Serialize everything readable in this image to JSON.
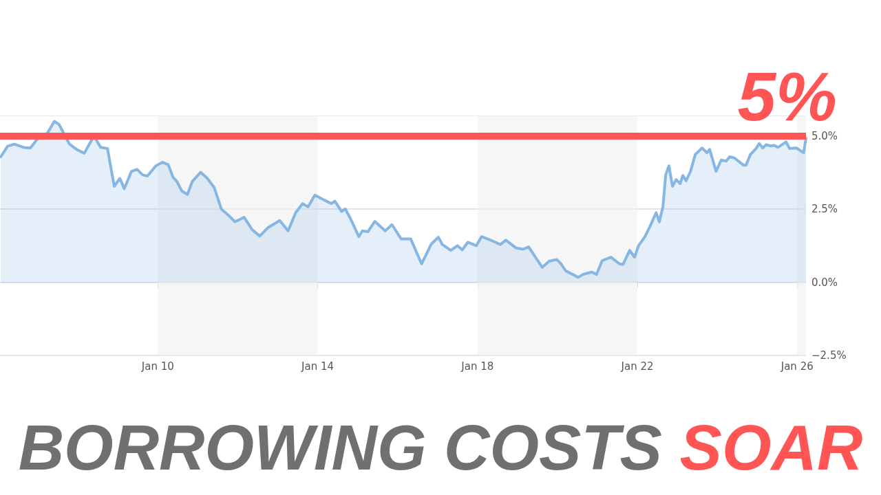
{
  "chart_data": {
    "type": "area",
    "title": "BORROWING COSTS SOAR",
    "x": [
      "--01-06T01:41",
      "--01-06T05:46",
      "--01-06T09:50",
      "--01-06T15:22",
      "--01-06T19:26",
      "--01-07T00:29",
      "--01-07T03:50",
      "--01-07T09:50",
      "--01-07T12:43",
      "--01-07T18:58",
      "--01-07T23:31",
      "--01-08T03:50",
      "--01-08T09:36",
      "--01-08T13:41",
      "--01-08T17:46",
      "--01-08T21:50",
      "--01-09T01:12",
      "--01-09T03:50",
      "--01-09T08:10",
      "--01-09T11:31",
      "--01-09T14:53",
      "--01-09T17:46",
      "--01-09T22:48",
      "--01-10T02:53",
      "--01-10T06:14",
      "--01-10T09:07",
      "--01-10T11:31",
      "--01-10T14:24",
      "--01-10T17:46",
      "--01-10T20:38",
      "--01-11T01:41",
      "--01-11T05:46",
      "--01-11T09:50",
      "--01-11T14:10",
      "--01-11T18:14",
      "--01-11T22:19",
      "--01-12T03:50",
      "--01-12T08:38",
      "--01-12T13:12",
      "--01-12T18:14",
      "--01-13T01:12",
      "--01-13T06:14",
      "--01-13T10:48",
      "--01-13T14:53",
      "--01-13T18:14",
      "--01-13T22:19",
      "--01-14T03:22",
      "--01-14T08:10",
      "--01-14T10:19",
      "--01-14T14:24",
      "--01-14T16:34",
      "--01-14T19:55",
      "--01-15T00:43",
      "--01-15T02:53",
      "--01-15T06:14",
      "--01-15T10:19",
      "--01-15T16:34",
      "--01-15T20:38",
      "--01-16T02:10",
      "--01-16T07:55",
      "--01-16T14:24",
      "--01-16T20:10",
      "--01-17T00:29",
      "--01-17T02:53",
      "--01-17T07:55",
      "--01-17T12:00",
      "--01-17T14:53",
      "--01-17T18:14",
      "--01-17T23:17",
      "--01-18T02:24",
      "--01-18T06:43",
      "--01-18T13:41",
      "--01-18T17:02",
      "--01-18T23:17",
      "--01-19T03:22",
      "--01-19T06:43",
      "--01-19T10:48",
      "--01-19T14:53",
      "--01-19T18:58",
      "--01-19T23:31",
      "--01-20T02:10",
      "--01-20T05:02",
      "--01-20T12:29",
      "--01-20T15:22",
      "--01-20T20:38",
      "--01-20T23:31",
      "--01-21T02:53",
      "--01-21T08:10",
      "--01-21T13:12",
      "--01-21T15:22",
      "--01-21T19:26",
      "--01-21T22:19",
      "--01-22T00:43",
      "--01-22T04:34",
      "--01-22T07:55",
      "--01-22T11:17",
      "--01-22T13:12",
      "--01-22T15:22",
      "--01-22T17:02",
      "--01-22T18:58",
      "--01-22T21:07",
      "--01-22T23:17",
      "--01-23T01:41",
      "--01-23T03:22",
      "--01-23T05:17",
      "--01-23T07:55",
      "--01-23T10:48",
      "--01-23T14:53",
      "--01-23T17:46",
      "--01-23T19:26",
      "--01-23T23:17",
      "--01-24T02:24",
      "--01-24T05:17",
      "--01-24T07:26",
      "--01-24T10:19",
      "--01-24T15:50",
      "--01-24T17:17",
      "--01-24T19:55",
      "--01-24T23:17",
      "--01-25T01:12",
      "--01-25T03:22",
      "--01-25T05:17",
      "--01-25T08:10",
      "--01-25T10:19",
      "--01-25T12:29",
      "--01-25T17:17",
      "--01-25T19:26",
      "--01-25T23:31",
      "--01-26T03:50",
      "--01-26T05:17"
    ],
    "series": [
      {
        "color": "#86b6e2",
        "values": [
          4.29,
          4.65,
          4.72,
          4.61,
          4.59,
          4.96,
          4.92,
          5.5,
          5.39,
          4.72,
          4.53,
          4.41,
          5.0,
          4.61,
          4.57,
          3.28,
          3.55,
          3.2,
          3.79,
          3.86,
          3.67,
          3.63,
          3.98,
          4.1,
          4.02,
          3.59,
          3.44,
          3.12,
          3.0,
          3.44,
          3.76,
          3.55,
          3.24,
          2.5,
          2.3,
          2.07,
          2.22,
          1.8,
          1.58,
          1.87,
          2.11,
          1.76,
          2.38,
          2.69,
          2.58,
          2.98,
          2.83,
          2.69,
          2.77,
          2.42,
          2.51,
          2.15,
          1.56,
          1.76,
          1.73,
          2.08,
          1.76,
          1.97,
          1.48,
          1.48,
          0.63,
          1.3,
          1.54,
          1.29,
          1.09,
          1.25,
          1.11,
          1.37,
          1.25,
          1.56,
          1.47,
          1.29,
          1.44,
          1.17,
          1.13,
          1.21,
          0.86,
          0.51,
          0.72,
          0.78,
          0.63,
          0.39,
          0.17,
          0.27,
          0.35,
          0.27,
          0.74,
          0.86,
          0.63,
          0.61,
          1.09,
          0.86,
          1.25,
          1.56,
          1.95,
          2.38,
          2.07,
          2.58,
          3.67,
          3.98,
          3.28,
          3.51,
          3.37,
          3.65,
          3.47,
          3.79,
          4.37,
          4.59,
          4.43,
          4.54,
          3.79,
          4.18,
          4.14,
          4.29,
          4.25,
          4.0,
          4.0,
          4.37,
          4.57,
          4.74,
          4.59,
          4.7,
          4.66,
          4.68,
          4.61,
          4.8,
          4.57,
          4.59,
          4.43,
          4.92
        ]
      }
    ],
    "xlim": [
      "--01-06T01:12",
      "--01-26T05:17"
    ],
    "xticks": [
      {
        "value": "--01-10",
        "label": "Jan 10"
      },
      {
        "value": "--01-14",
        "label": "Jan 14"
      },
      {
        "value": "--01-18",
        "label": "Jan 18"
      },
      {
        "value": "--01-22",
        "label": "Jan 22"
      },
      {
        "value": "--01-26",
        "label": "Jan 26"
      }
    ],
    "ylim": [
      -2.5,
      5.7
    ],
    "yticks": [
      {
        "value": -2.5,
        "label": "−2.5%"
      },
      {
        "value": 0,
        "label": "0.0%"
      },
      {
        "value": 2.5,
        "label": "2.5%"
      },
      {
        "value": 5,
        "label": "5.0%"
      }
    ],
    "ref_lines": [
      {
        "axis": "y",
        "value": 5,
        "label": "5%",
        "color": "#ff5555"
      }
    ],
    "bands": [
      {
        "axis": "x",
        "from": "--01-10",
        "to": "--01-14",
        "color": "#f0f0f0"
      },
      {
        "axis": "x",
        "from": "--01-18",
        "to": "--01-22",
        "color": "#f0f0f0"
      },
      {
        "axis": "x",
        "from": "--01-26",
        "to": "--01-26T05:17",
        "color": "#f0f0f0"
      }
    ],
    "grid": "y",
    "marker": "none",
    "line_style": "solid"
  }
}
